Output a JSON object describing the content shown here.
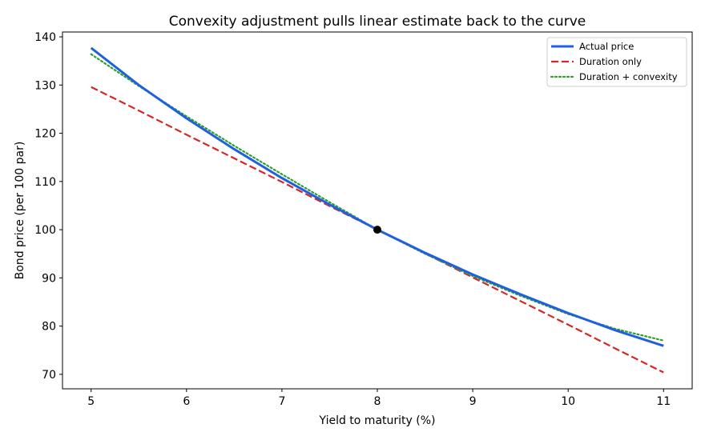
{
  "chart_data": {
    "type": "line",
    "title": "Convexity adjustment pulls linear estimate back to the curve",
    "xlabel": "Yield to maturity (%)",
    "ylabel": "Bond price (per 100 par)",
    "xlim": [
      4.7,
      11.3
    ],
    "ylim": [
      67,
      141
    ],
    "x_ticks": [
      5,
      6,
      7,
      8,
      9,
      10,
      11
    ],
    "y_ticks": [
      70,
      80,
      90,
      100,
      110,
      120,
      130,
      140
    ],
    "grid": false,
    "legend_position": "top-right",
    "x": [
      5.0,
      5.5,
      6.0,
      6.5,
      7.0,
      7.5,
      8.0,
      8.5,
      9.0,
      9.5,
      10.0,
      10.5,
      11.0
    ],
    "series": [
      {
        "name": "Actual price",
        "color": "#1f5fe0",
        "style": "solid",
        "values": [
          137.7,
          130.0,
          123.1,
          116.7,
          110.7,
          105.2,
          100.0,
          95.2,
          90.7,
          86.6,
          82.7,
          79.1,
          75.9
        ]
      },
      {
        "name": "Duration only",
        "color": "#d62728",
        "style": "dashed",
        "values": [
          129.6,
          124.7,
          119.7,
          114.8,
          109.9,
          104.9,
          100.0,
          95.1,
          90.1,
          85.2,
          80.3,
          75.3,
          70.4
        ]
      },
      {
        "name": "Duration + convexity",
        "color": "#2ca02c",
        "style": "dotted",
        "values": [
          136.4,
          129.8,
          123.5,
          117.4,
          111.5,
          105.7,
          100.0,
          95.0,
          90.4,
          86.3,
          82.5,
          79.4,
          77.0
        ]
      }
    ],
    "highlight_point": {
      "x": 8.0,
      "y": 100.0,
      "color": "#000000"
    }
  }
}
